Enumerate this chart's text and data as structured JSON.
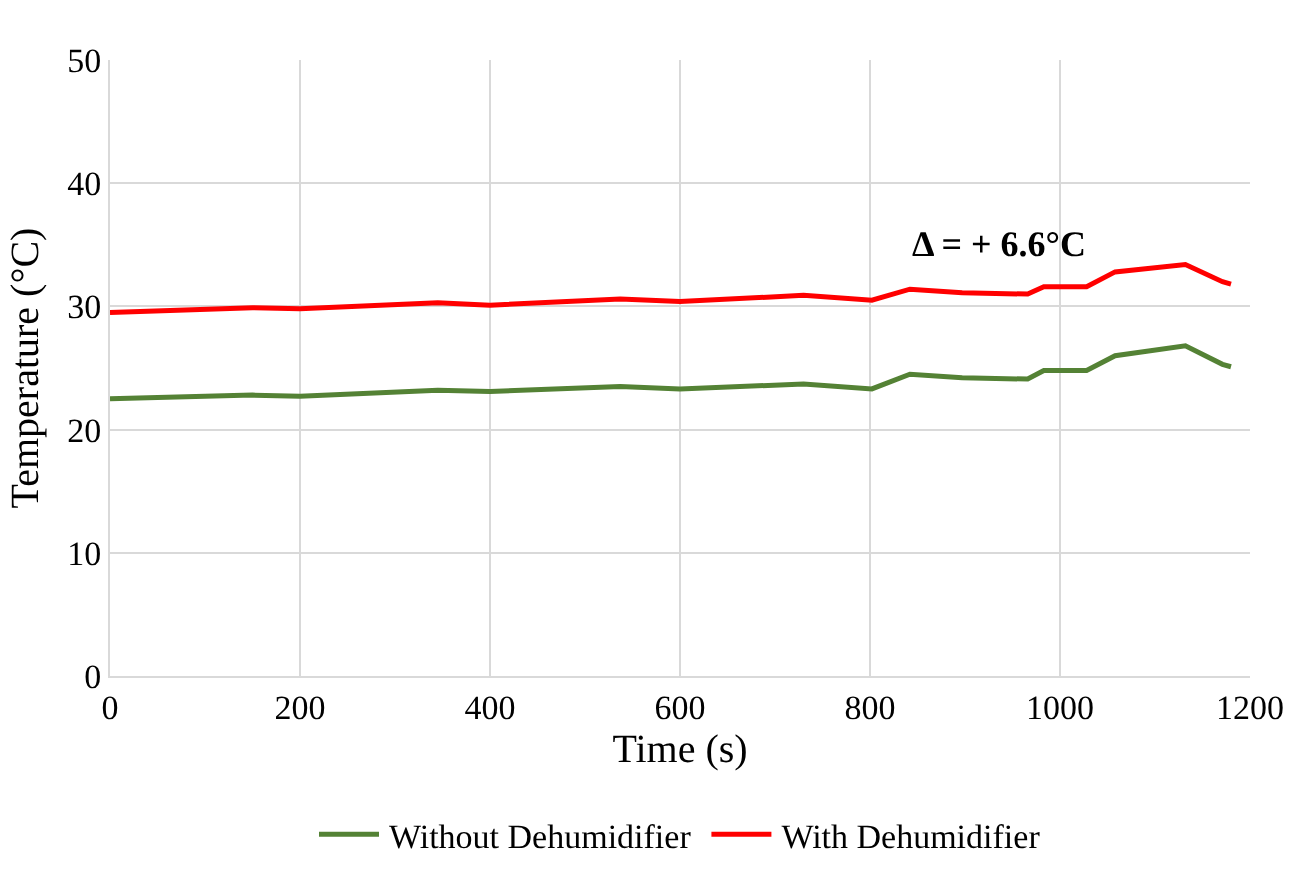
{
  "chart_data": {
    "type": "line",
    "xlabel": "Time (s)",
    "ylabel": "Temperature (°C)",
    "annotations": [
      "Δ = + 6.6°C"
    ],
    "x": [
      0,
      150,
      200,
      345,
      400,
      537,
      600,
      730,
      802,
      842,
      897,
      966,
      983,
      1028,
      1058,
      1132,
      1171,
      1180
    ],
    "series": [
      {
        "name": "Without Dehumidifier",
        "color": "#548235",
        "values": [
          22.5,
          22.8,
          22.7,
          23.2,
          23.1,
          23.5,
          23.3,
          23.7,
          23.3,
          24.5,
          24.2,
          24.1,
          24.8,
          24.8,
          26.0,
          26.8,
          25.3,
          25.1
        ]
      },
      {
        "name": "With Dehumidifier",
        "color": "#ff0000",
        "values": [
          29.5,
          29.9,
          29.8,
          30.3,
          30.1,
          30.6,
          30.4,
          30.9,
          30.5,
          31.4,
          31.1,
          31.0,
          31.6,
          31.6,
          32.8,
          33.4,
          32.0,
          31.8
        ]
      }
    ],
    "xlim": [
      0,
      1200
    ],
    "xticks": [
      0,
      200,
      400,
      600,
      800,
      1000,
      1200
    ],
    "ylim": [
      0,
      50
    ],
    "yticks": [
      0,
      10,
      20,
      30,
      40,
      50
    ],
    "grid": true,
    "legend": "bottom",
    "marker": "none",
    "line_style": "solid"
  }
}
